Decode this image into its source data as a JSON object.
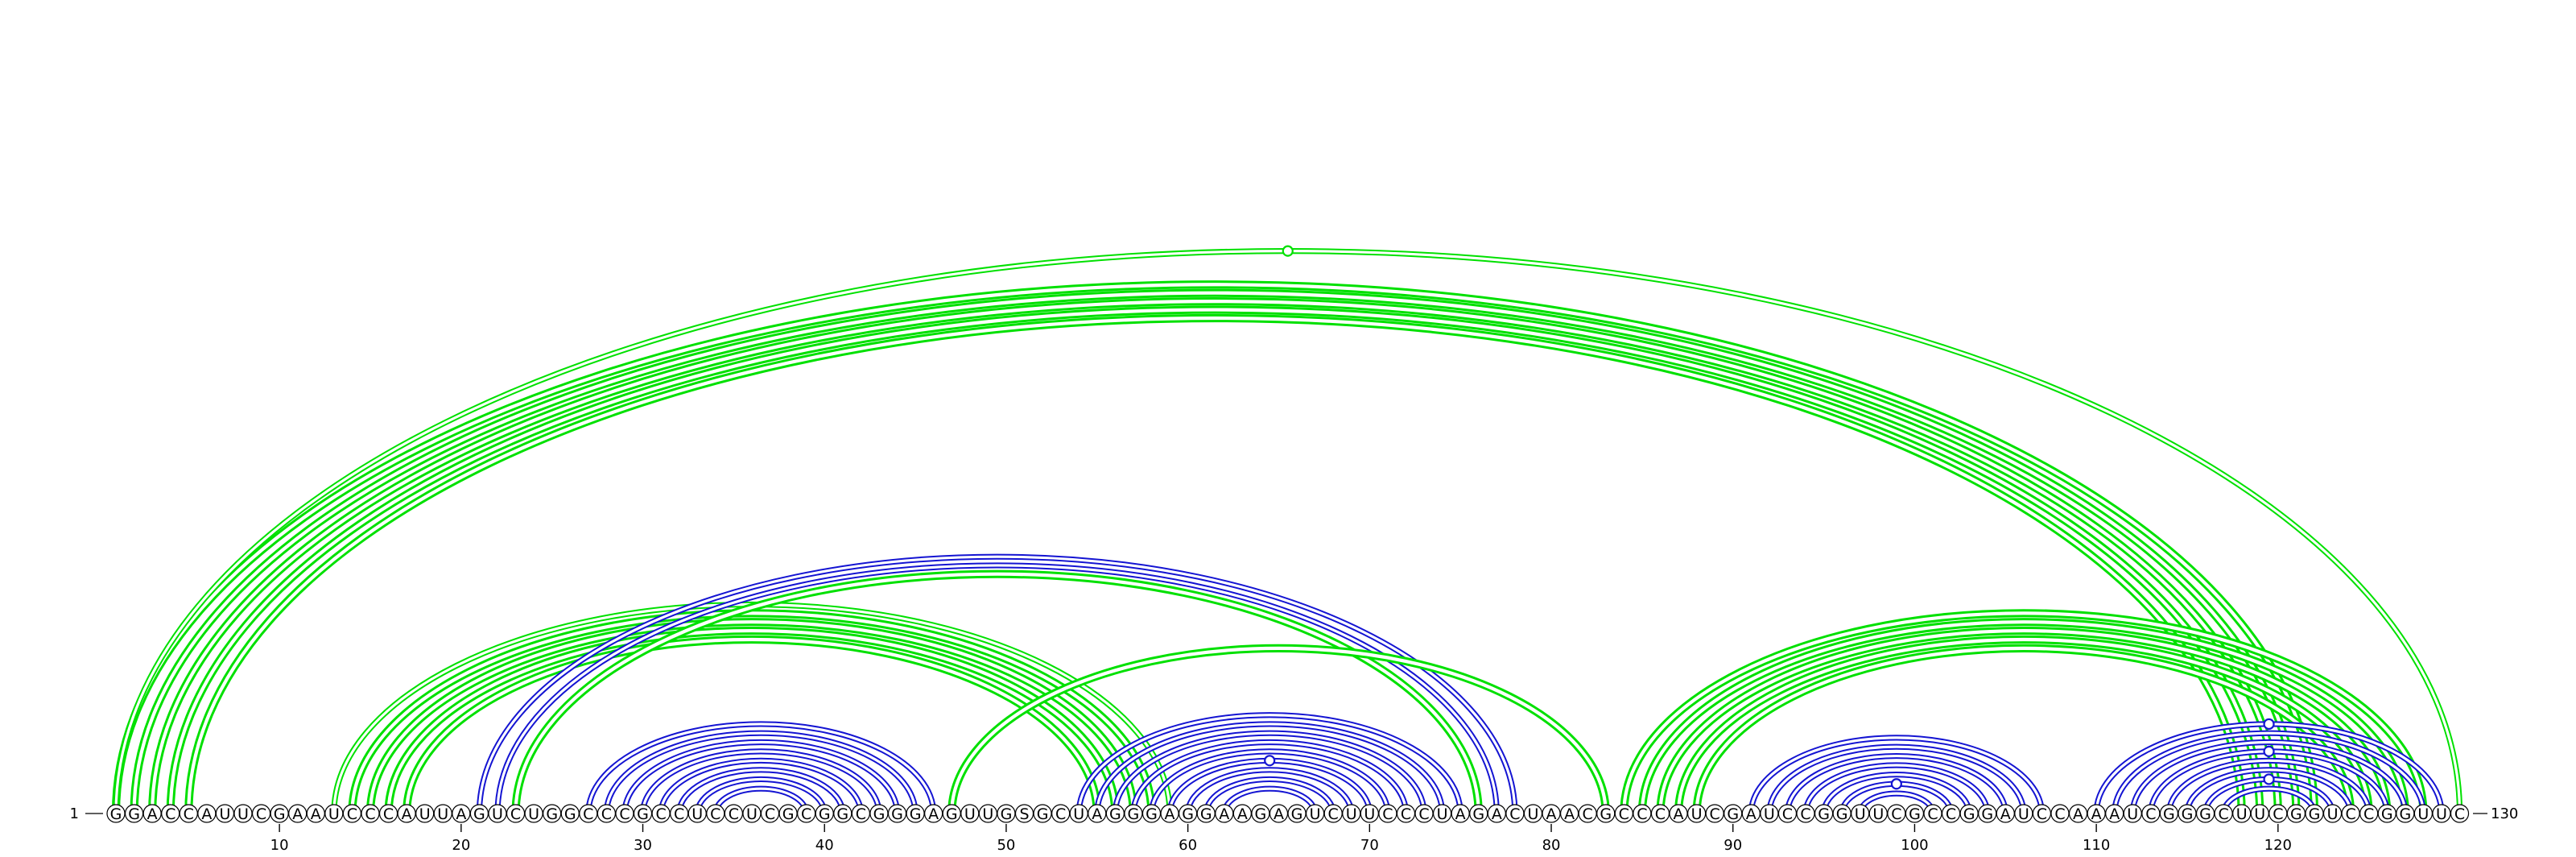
{
  "sequence": "GGACCAUUCGAAUCCCAUUAGUCUGGCCCGCCUCCUCGCGGCGGGAGUUGSGCUAGGGAGGAAGAGUCUUCCCUAGACUAACGCCCAUCGAUCCGGUUCGCCGGAUCCAAAUCGGGCUUCGGUCCGGUUC",
  "start_label": "1",
  "end_label": "130",
  "position_ticks": [
    "10",
    "20",
    "30",
    "40",
    "50",
    "60",
    "70",
    "80",
    "90",
    "100",
    "110",
    "120"
  ],
  "colors": {
    "green": "#00e000",
    "blue": "#1414d2"
  },
  "arc_groups": [
    {
      "color": "green",
      "pairs": [
        [
          1,
          122
        ],
        [
          2,
          121
        ],
        [
          3,
          120
        ],
        [
          4,
          119
        ],
        [
          5,
          118
        ]
      ],
      "weights": [
        3,
        3,
        3,
        3,
        3
      ]
    },
    {
      "color": "green",
      "pairs": [
        [
          1,
          130
        ]
      ],
      "weights": [
        2
      ]
    },
    {
      "color": "green",
      "pairs": [
        [
          13,
          59
        ],
        [
          14,
          58
        ],
        [
          15,
          57
        ],
        [
          16,
          56
        ],
        [
          17,
          55
        ]
      ],
      "weights": [
        2,
        3,
        3,
        3,
        3
      ]
    },
    {
      "color": "blue",
      "pairs": [
        [
          21,
          78
        ],
        [
          22,
          77
        ]
      ],
      "weights": [
        2,
        2
      ]
    },
    {
      "color": "green",
      "pairs": [
        [
          23,
          76
        ]
      ],
      "weights": [
        3
      ]
    },
    {
      "color": "blue",
      "pairs": [
        [
          27,
          46
        ],
        [
          28,
          45
        ],
        [
          29,
          44
        ],
        [
          30,
          43
        ],
        [
          31,
          42
        ],
        [
          32,
          41
        ],
        [
          33,
          40
        ],
        [
          34,
          39
        ]
      ],
      "weights": [
        2,
        2,
        2,
        2,
        2,
        2,
        2,
        2
      ]
    },
    {
      "color": "green",
      "pairs": [
        [
          47,
          83
        ]
      ],
      "weights": [
        3
      ]
    },
    {
      "color": "blue",
      "pairs": [
        [
          54,
          75
        ],
        [
          55,
          74
        ],
        [
          56,
          73
        ],
        [
          57,
          72
        ],
        [
          58,
          71
        ],
        [
          59,
          70
        ],
        [
          60,
          69
        ],
        [
          61,
          68
        ],
        [
          62,
          67
        ]
      ],
      "weights": [
        2,
        2,
        2,
        2,
        2,
        2,
        2,
        2,
        2
      ]
    },
    {
      "color": "green",
      "pairs": [
        [
          84,
          128
        ],
        [
          85,
          127
        ],
        [
          86,
          126
        ],
        [
          87,
          125
        ],
        [
          88,
          124
        ]
      ],
      "weights": [
        3,
        3,
        3,
        3,
        3
      ]
    },
    {
      "color": "blue",
      "pairs": [
        [
          91,
          107
        ],
        [
          92,
          106
        ],
        [
          93,
          105
        ],
        [
          94,
          104
        ],
        [
          95,
          103
        ],
        [
          96,
          102
        ],
        [
          97,
          101
        ]
      ],
      "weights": [
        2,
        2,
        2,
        2,
        2,
        2,
        2
      ]
    },
    {
      "color": "blue",
      "pairs": [
        [
          110,
          129
        ],
        [
          111,
          128
        ],
        [
          112,
          127
        ],
        [
          113,
          126
        ],
        [
          114,
          125
        ],
        [
          115,
          124
        ],
        [
          116,
          123
        ],
        [
          117,
          122
        ]
      ],
      "weights": [
        2,
        2,
        2,
        2,
        2,
        2,
        2,
        2
      ]
    }
  ],
  "markers": [
    {
      "color": "green",
      "pair": [
        1,
        130
      ]
    },
    {
      "color": "blue",
      "pair": [
        59,
        70
      ]
    },
    {
      "color": "blue",
      "pair": [
        96,
        102
      ]
    },
    {
      "color": "blue",
      "pair": [
        110,
        129
      ]
    },
    {
      "color": "blue",
      "pair": [
        113,
        126
      ]
    },
    {
      "color": "blue",
      "pair": [
        116,
        123
      ]
    }
  ]
}
